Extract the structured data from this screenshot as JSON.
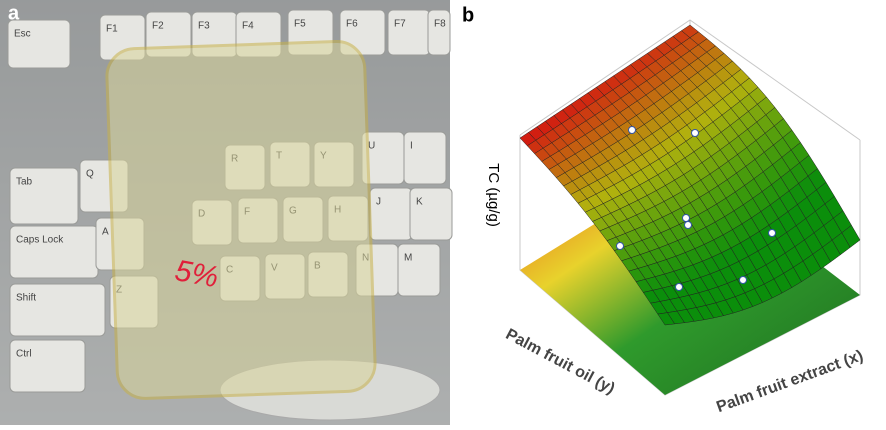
{
  "panel_a": {
    "label": "a",
    "keys": [
      "Esc",
      "F1",
      "F2",
      "F3",
      "F4",
      "F5",
      "F6",
      "F7",
      "F8",
      "Tab",
      "Caps Lock",
      "Shift",
      "Ctrl",
      "Q",
      "A",
      "Z",
      "U",
      "I",
      "J",
      "K",
      "N",
      "M",
      "R",
      "T",
      "Y",
      "D",
      "F",
      "G",
      "H",
      "C",
      "V",
      "B"
    ],
    "handwriting": "5%"
  },
  "panel_b": {
    "label": "b",
    "z_label": "TC (µg/g)",
    "y_label": "Palm fruit oil (y)",
    "x_label": "Palm fruit extract (x)"
  }
}
